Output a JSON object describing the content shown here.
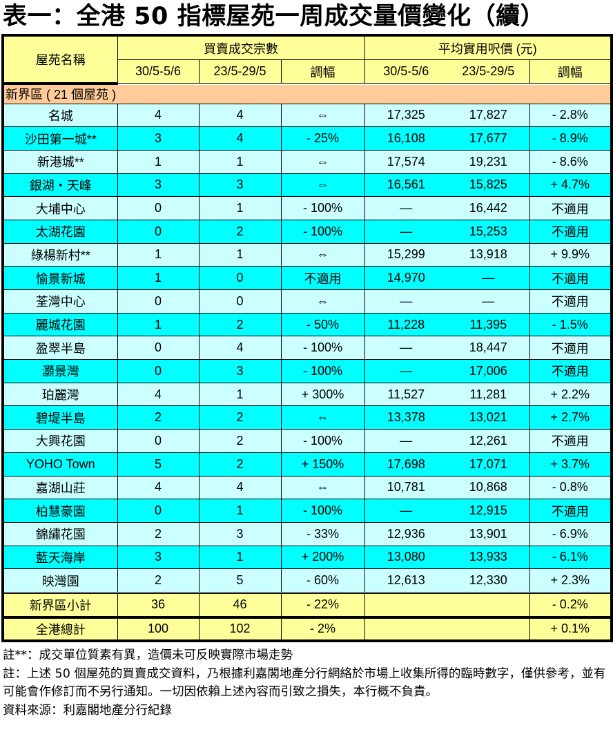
{
  "title": "表一：全港 50 指標屋苑一周成交量價變化（續）",
  "header": {
    "estate_name": "屋苑名稱",
    "volume_group": "買賣成交宗數",
    "price_group": "平均實用呎價 (元)",
    "period_current": "30/5-5/6",
    "period_previous": "23/5-29/5",
    "change": "調幅"
  },
  "section": {
    "label": "新界區 ( 21 個屋苑 )"
  },
  "rows": [
    {
      "name": "名城",
      "vol_cur": "4",
      "vol_prev": "4",
      "vol_chg": "⇔",
      "price_cur": "17,325",
      "price_prev": "17,827",
      "price_chg": "- 2.8%"
    },
    {
      "name": "沙田第一城**",
      "vol_cur": "3",
      "vol_prev": "4",
      "vol_chg": "- 25%",
      "price_cur": "16,108",
      "price_prev": "17,677",
      "price_chg": "- 8.9%"
    },
    {
      "name": "新港城**",
      "vol_cur": "1",
      "vol_prev": "1",
      "vol_chg": "⇔",
      "price_cur": "17,574",
      "price_prev": "19,231",
      "price_chg": "- 8.6%"
    },
    {
      "name": "銀湖・天峰",
      "vol_cur": "3",
      "vol_prev": "3",
      "vol_chg": "⇔",
      "price_cur": "16,561",
      "price_prev": "15,825",
      "price_chg": "+ 4.7%"
    },
    {
      "name": "大埔中心",
      "vol_cur": "0",
      "vol_prev": "1",
      "vol_chg": "- 100%",
      "price_cur": "—",
      "price_prev": "16,442",
      "price_chg": "不適用"
    },
    {
      "name": "太湖花園",
      "vol_cur": "0",
      "vol_prev": "2",
      "vol_chg": "- 100%",
      "price_cur": "—",
      "price_prev": "15,253",
      "price_chg": "不適用"
    },
    {
      "name": "綠楊新村**",
      "vol_cur": "1",
      "vol_prev": "1",
      "vol_chg": "⇔",
      "price_cur": "15,299",
      "price_prev": "13,918",
      "price_chg": "+ 9.9%"
    },
    {
      "name": "愉景新城",
      "vol_cur": "1",
      "vol_prev": "0",
      "vol_chg": "不適用",
      "price_cur": "14,970",
      "price_prev": "—",
      "price_chg": "不適用"
    },
    {
      "name": "荃灣中心",
      "vol_cur": "0",
      "vol_prev": "0",
      "vol_chg": "⇔",
      "price_cur": "—",
      "price_prev": "—",
      "price_chg": "不適用"
    },
    {
      "name": "麗城花園",
      "vol_cur": "1",
      "vol_prev": "2",
      "vol_chg": "- 50%",
      "price_cur": "11,228",
      "price_prev": "11,395",
      "price_chg": "- 1.5%"
    },
    {
      "name": "盈翠半島",
      "vol_cur": "0",
      "vol_prev": "4",
      "vol_chg": "- 100%",
      "price_cur": "—",
      "price_prev": "18,447",
      "price_chg": "不適用"
    },
    {
      "name": "灝景灣",
      "vol_cur": "0",
      "vol_prev": "3",
      "vol_chg": "- 100%",
      "price_cur": "—",
      "price_prev": "17,006",
      "price_chg": "不適用"
    },
    {
      "name": "珀麗灣",
      "vol_cur": "4",
      "vol_prev": "1",
      "vol_chg": "+ 300%",
      "price_cur": "11,527",
      "price_prev": "11,281",
      "price_chg": "+ 2.2%"
    },
    {
      "name": "碧堤半島",
      "vol_cur": "2",
      "vol_prev": "2",
      "vol_chg": "⇔",
      "price_cur": "13,378",
      "price_prev": "13,021",
      "price_chg": "+ 2.7%"
    },
    {
      "name": "大興花園",
      "vol_cur": "0",
      "vol_prev": "2",
      "vol_chg": "- 100%",
      "price_cur": "—",
      "price_prev": "12,261",
      "price_chg": "不適用"
    },
    {
      "name": "YOHO Town",
      "vol_cur": "5",
      "vol_prev": "2",
      "vol_chg": "+ 150%",
      "price_cur": "17,698",
      "price_prev": "17,071",
      "price_chg": "+ 3.7%"
    },
    {
      "name": "嘉湖山莊",
      "vol_cur": "4",
      "vol_prev": "4",
      "vol_chg": "⇔",
      "price_cur": "10,781",
      "price_prev": "10,868",
      "price_chg": "- 0.8%"
    },
    {
      "name": "柏慧豪園",
      "vol_cur": "0",
      "vol_prev": "1",
      "vol_chg": "- 100%",
      "price_cur": "—",
      "price_prev": "12,915",
      "price_chg": "不適用"
    },
    {
      "name": "錦繡花園",
      "vol_cur": "2",
      "vol_prev": "3",
      "vol_chg": "- 33%",
      "price_cur": "12,936",
      "price_prev": "13,901",
      "price_chg": "- 6.9%"
    },
    {
      "name": "藍天海岸",
      "vol_cur": "3",
      "vol_prev": "1",
      "vol_chg": "+ 200%",
      "price_cur": "13,080",
      "price_prev": "13,933",
      "price_chg": "- 6.1%"
    },
    {
      "name": "映灣園",
      "vol_cur": "2",
      "vol_prev": "5",
      "vol_chg": "- 60%",
      "price_cur": "12,613",
      "price_prev": "12,330",
      "price_chg": "+ 2.3%"
    }
  ],
  "subtotal": {
    "name": "新界區小計",
    "vol_cur": "36",
    "vol_prev": "46",
    "vol_chg": "- 22%",
    "price_chg": "- 0.2%"
  },
  "total": {
    "name": "全港總計",
    "vol_cur": "100",
    "vol_prev": "102",
    "vol_chg": "- 2%",
    "price_chg": "+ 0.1%"
  },
  "notes": {
    "note1": "註**：成交單位質素有異，造價未可反映實際市場走勢",
    "note2": "註：上述 50 個屋苑的買賣成交資料，乃根據利嘉閣地產分行網絡於市場上收集所得的臨時數字，僅供參考，並有可能會作修訂而不另行通知。一切因依賴上述內容而引致之損失，本行概不負責。",
    "source": "資料來源：利嘉閣地產分行紀錄"
  },
  "colors": {
    "header_bg": "#ffff99",
    "section_bg": "#ffcc99",
    "row_light": "#ccffff",
    "row_dark": "#00ffff",
    "border": "#000000"
  }
}
